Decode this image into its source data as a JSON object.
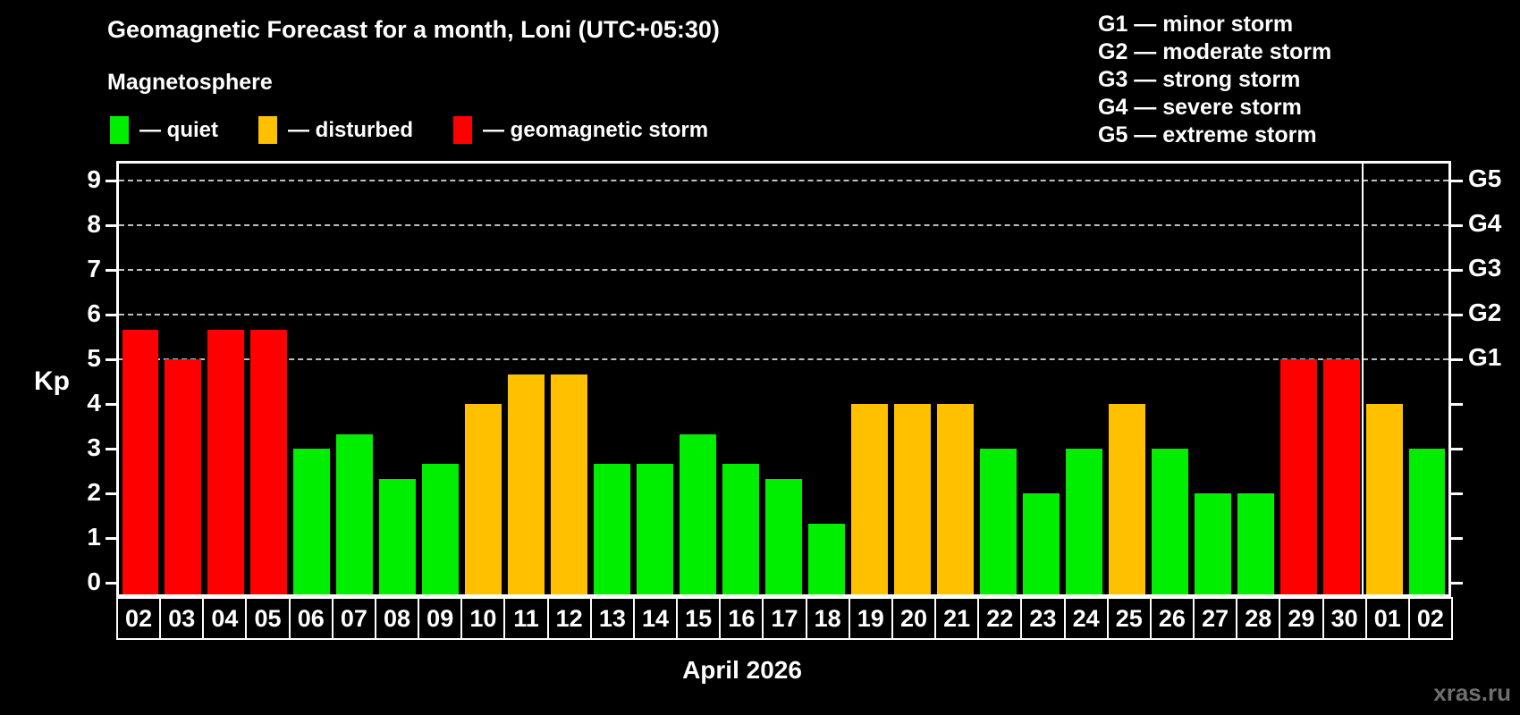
{
  "title": "Geomagnetic Forecast for a month, Loni (UTC+05:30)",
  "subtitle": "Magnetosphere",
  "legend": {
    "quiet": "— quiet",
    "disturbed": "— disturbed",
    "storm": "— geomagnetic storm"
  },
  "g_legend": [
    "G1 — minor storm",
    "G2 — moderate storm",
    "G3 — strong storm",
    "G4 — severe storm",
    "G5 — extreme storm"
  ],
  "colors": {
    "quiet": "#00ee00",
    "disturbed": "#ffc000",
    "storm": "#ff0000",
    "grid": "#c0c0c0",
    "frame": "#ffffff",
    "background": "#000000",
    "watermark": "#6f6f6f"
  },
  "watermark": "xras.ru",
  "chart_data": {
    "type": "bar",
    "title": "Geomagnetic Forecast for a month, Loni (UTC+05:30)",
    "xlabel": "April 2026",
    "ylabel": "Kp",
    "ylim": [
      -0.32,
      9.44
    ],
    "grid": "dashed horizontal at Kp 5..9 only",
    "y_ticks": [
      0,
      1,
      2,
      3,
      4,
      5,
      6,
      7,
      8,
      9
    ],
    "right_axis_labels": [
      {
        "kp": 5,
        "text": "G1"
      },
      {
        "kp": 6,
        "text": "G2"
      },
      {
        "kp": 7,
        "text": "G3"
      },
      {
        "kp": 8,
        "text": "G4"
      },
      {
        "kp": 9,
        "text": "G5"
      }
    ],
    "categories": [
      "02",
      "03",
      "04",
      "05",
      "06",
      "07",
      "08",
      "09",
      "10",
      "11",
      "12",
      "13",
      "14",
      "15",
      "16",
      "17",
      "18",
      "19",
      "20",
      "21",
      "22",
      "23",
      "24",
      "25",
      "26",
      "27",
      "28",
      "29",
      "30",
      "01",
      "02"
    ],
    "values": [
      5.67,
      5,
      5.67,
      5.67,
      3,
      3.33,
      2.33,
      2.67,
      4,
      4.67,
      4.67,
      2.67,
      2.67,
      3.33,
      2.67,
      2.33,
      1.33,
      4,
      4,
      4,
      3,
      2,
      3,
      4,
      3,
      2,
      2,
      5,
      5,
      4,
      3
    ],
    "status": [
      "storm",
      "storm",
      "storm",
      "storm",
      "quiet",
      "quiet",
      "quiet",
      "quiet",
      "disturbed",
      "disturbed",
      "disturbed",
      "quiet",
      "quiet",
      "quiet",
      "quiet",
      "quiet",
      "quiet",
      "disturbed",
      "disturbed",
      "disturbed",
      "quiet",
      "quiet",
      "quiet",
      "disturbed",
      "quiet",
      "quiet",
      "quiet",
      "storm",
      "storm",
      "disturbed",
      "quiet"
    ],
    "month_separator_after_index": 28
  }
}
